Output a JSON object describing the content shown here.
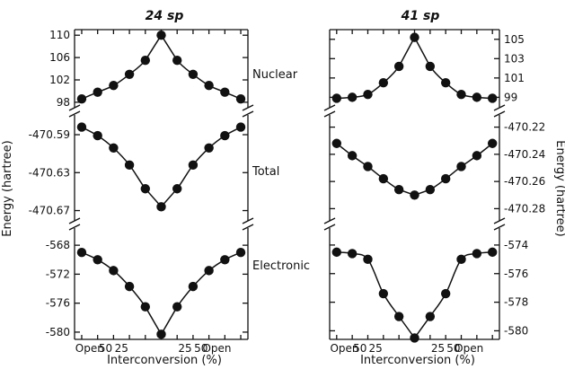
{
  "chart_data": [
    {
      "type": "line",
      "title": "24 sp",
      "xlabel": "Interconversion (%)",
      "ylabel": "Energy (hartree)",
      "x_tick_labels": [
        "Open",
        "50",
        "25",
        "25",
        "50",
        "Open"
      ],
      "x": [
        0,
        1,
        2,
        3,
        4,
        5,
        6,
        7,
        8,
        9,
        10
      ],
      "panels": [
        {
          "name": "Nuclear",
          "yticks": [
            "110",
            "106",
            "102",
            "98"
          ],
          "ylim": [
            97.5,
            111
          ],
          "values": [
            98.6,
            99.8,
            101.0,
            103.0,
            105.5,
            110.0,
            105.5,
            103.0,
            101.0,
            99.8,
            98.6
          ]
        },
        {
          "name": "Total",
          "yticks": [
            "-470.59",
            "-470.63",
            "-470.67"
          ],
          "ylim": [
            -470.678,
            -470.572
          ],
          "values": [
            -470.582,
            -470.591,
            -470.604,
            -470.622,
            -470.647,
            -470.666,
            -470.647,
            -470.622,
            -470.604,
            -470.591,
            -470.582
          ]
        },
        {
          "name": "Electronic",
          "yticks": [
            "-568",
            "-572",
            "-576",
            "-580"
          ],
          "ylim": [
            -581,
            -566
          ],
          "values": [
            -569.0,
            -570.0,
            -571.5,
            -573.7,
            -576.5,
            -580.3,
            -576.5,
            -573.7,
            -571.5,
            -570.0,
            -569.0
          ]
        }
      ]
    },
    {
      "type": "line",
      "title": "41 sp",
      "xlabel": "Interconversion (%)",
      "ylabel": "Energy (hartree)",
      "x_tick_labels": [
        "Open",
        "50",
        "25",
        "25",
        "50",
        "Open"
      ],
      "x": [
        0,
        1,
        2,
        3,
        4,
        5,
        6,
        7,
        8,
        9,
        10
      ],
      "panels": [
        {
          "name": "Nuclear",
          "yticks": [
            "105",
            "103",
            "101",
            "99"
          ],
          "ylim": [
            98.2,
            106
          ],
          "values": [
            98.9,
            99.0,
            99.3,
            100.5,
            102.2,
            105.2,
            102.2,
            100.5,
            99.3,
            99.0,
            98.9
          ]
        },
        {
          "name": "Total",
          "yticks": [
            "-470.22",
            "-470.24",
            "-470.26",
            "-470.28"
          ],
          "ylim": [
            -470.287,
            -470.213
          ],
          "values": [
            -470.232,
            -470.241,
            -470.249,
            -470.258,
            -470.266,
            -470.27,
            -470.266,
            -470.258,
            -470.249,
            -470.241,
            -470.232
          ]
        },
        {
          "name": "Electronic",
          "yticks": [
            "-574",
            "-576",
            "-578",
            "-580"
          ],
          "ylim": [
            -580.6,
            -573.0
          ],
          "values": [
            -574.5,
            -574.6,
            -575.0,
            -577.4,
            -579.0,
            -580.5,
            -579.0,
            -577.4,
            -575.0,
            -574.6,
            -574.5
          ]
        }
      ]
    }
  ]
}
